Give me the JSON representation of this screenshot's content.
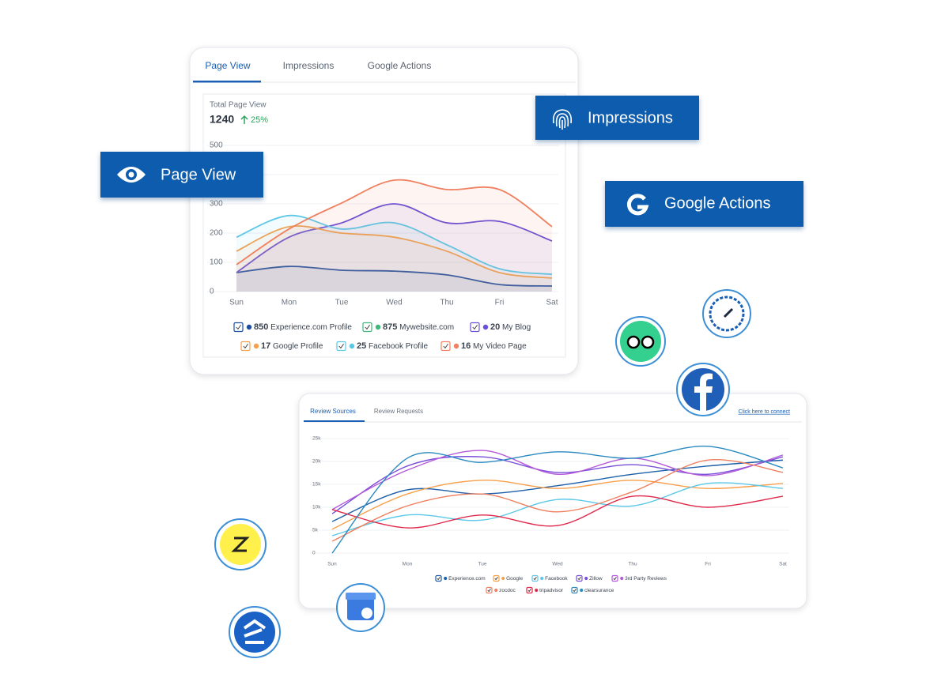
{
  "badges": {
    "impressions": "Impressions",
    "page_view": "Page View",
    "google_actions": "Google Actions"
  },
  "card1": {
    "tabs": [
      "Page View",
      "Impressions",
      "Google Actions"
    ],
    "summary_label": "Total Page View",
    "summary_value": 1240,
    "summary_change": "25%"
  },
  "card2": {
    "tabs": [
      "Review Sources",
      "Review Requests"
    ],
    "link": "Click here to connect"
  },
  "chart_data": [
    {
      "type": "area",
      "categories": [
        "Sun",
        "Mon",
        "Tue",
        "Wed",
        "Thu",
        "Fri",
        "Sat"
      ],
      "ylim": [
        0,
        500
      ],
      "yticks": [
        0,
        100,
        200,
        300,
        400,
        500
      ],
      "grid": true,
      "series": [
        {
          "name": "Experience.com Profile",
          "total": 850,
          "color": "#1a4fa0",
          "values": [
            65,
            86,
            73,
            70,
            57,
            24,
            19
          ]
        },
        {
          "name": "Mywebsite.com",
          "total": 875,
          "color": "#3db87a",
          "values": [
            null,
            null,
            null,
            null,
            null,
            null,
            null
          ]
        },
        {
          "name": "My Blog",
          "total": 20,
          "color": "#6c4fd8",
          "values": [
            65,
            186,
            235,
            300,
            235,
            240,
            173
          ]
        },
        {
          "name": "Google Profile",
          "total": 17,
          "color": "#f7a04b",
          "values": [
            138,
            222,
            200,
            186,
            138,
            65,
            46
          ]
        },
        {
          "name": "Facebook Profile",
          "total": 25,
          "color": "#5bc8e8",
          "values": [
            186,
            260,
            214,
            235,
            160,
            78,
            59
          ]
        },
        {
          "name": "My Video Page",
          "total": 16,
          "color": "#f08060",
          "values": [
            92,
            214,
            303,
            381,
            349,
            349,
            222
          ]
        }
      ]
    },
    {
      "type": "line",
      "categories": [
        "Sun",
        "Mon",
        "Tue",
        "Wed",
        "Thu",
        "Fri",
        "Sat"
      ],
      "ylim": [
        0,
        25000
      ],
      "yticks": [
        0,
        {
          "value": 5000,
          "label": "5k"
        },
        {
          "value": 10000,
          "label": "10k"
        },
        {
          "value": 15000,
          "label": "15k"
        },
        {
          "value": 20000,
          "label": "20k"
        },
        {
          "value": 25000,
          "label": "25k"
        }
      ],
      "grid": true,
      "series": [
        {
          "name": "Experience.com",
          "color": "#1d5fa8",
          "values": [
            6900,
            13800,
            12900,
            14700,
            17200,
            19000,
            20300
          ]
        },
        {
          "name": "Google",
          "color": "#f7a04b",
          "values": [
            5200,
            12900,
            15900,
            14100,
            15900,
            14100,
            15200
          ]
        },
        {
          "name": "Facebook",
          "color": "#5bc8e8",
          "values": [
            3800,
            8300,
            7200,
            11700,
            10300,
            15200,
            14100
          ]
        },
        {
          "name": "Zillow",
          "color": "#7a4fd8",
          "values": [
            8600,
            19000,
            21000,
            17600,
            19300,
            17200,
            21000
          ]
        },
        {
          "name": "3rd Party Reviews",
          "color": "#b45ad8",
          "values": [
            9500,
            18100,
            22400,
            17200,
            20700,
            16900,
            21400
          ]
        },
        {
          "name": "zocdoc",
          "color": "#f08060",
          "values": [
            2600,
            10300,
            12900,
            9000,
            13400,
            20300,
            17600
          ]
        },
        {
          "name": "tripadvisor",
          "color": "#e0284a",
          "values": [
            9500,
            5500,
            8300,
            6000,
            12400,
            10000,
            12400
          ]
        },
        {
          "name": "clearsurance",
          "color": "#2a8ac0",
          "values": [
            0,
            20700,
            19800,
            22100,
            20700,
            23300,
            18600
          ]
        }
      ]
    }
  ]
}
